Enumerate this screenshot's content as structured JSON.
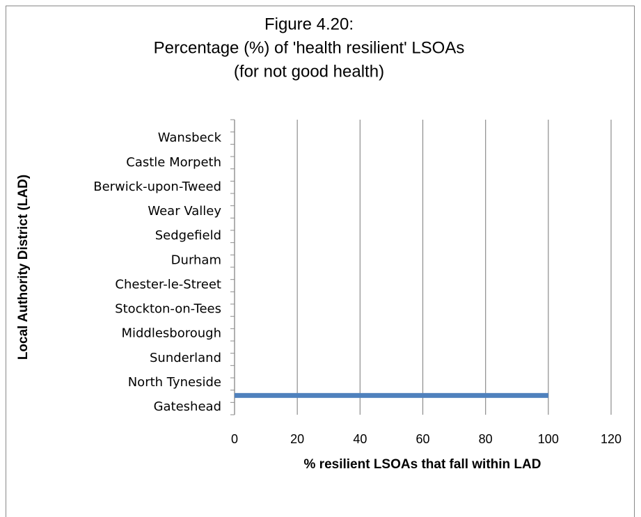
{
  "chart_data": {
    "type": "bar",
    "orientation": "horizontal",
    "title": [
      "Figure 4.20:",
      "Percentage (%) of 'health resilient' LSOAs",
      "(for not good health)"
    ],
    "x_label": "% resilient LSOAs that fall within LAD",
    "y_label": "Local Authority District (LAD)",
    "categories": [
      "Wansbeck",
      "Castle Morpeth",
      "Berwick-upon-Tweed",
      "Wear Valley",
      "Sedgefield",
      "Durham",
      "Chester-le-Street",
      "Stockton-on-Tees",
      "Middlesborough",
      "Sunderland",
      "North Tyneside",
      "Gateshead"
    ],
    "values": [
      0,
      0,
      0,
      0,
      0,
      0,
      0,
      0,
      0,
      0,
      0,
      100
    ],
    "color": "#4f81bd",
    "xlim": [
      0,
      120
    ],
    "xticks": [
      0,
      20,
      40,
      60,
      80,
      100,
      120
    ],
    "grid": true
  }
}
